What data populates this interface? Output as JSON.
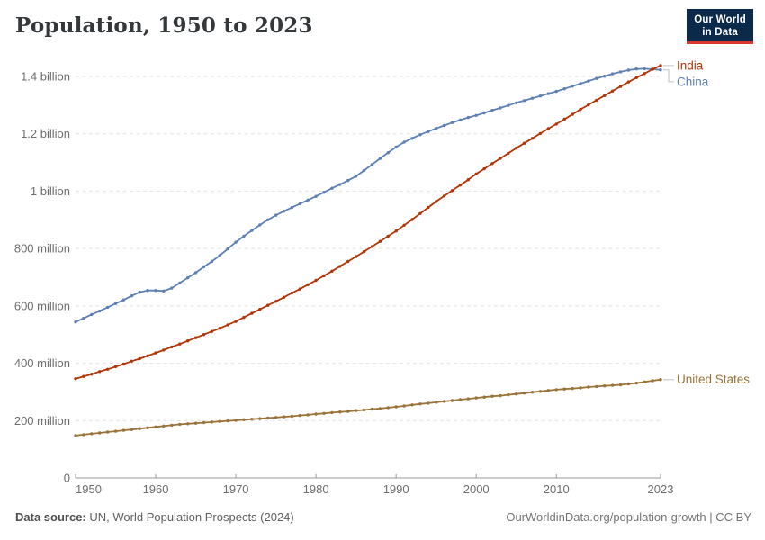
{
  "header": {
    "title": "Population, 1950 to 2023"
  },
  "logo": {
    "line1": "Our World",
    "line2": "in Data"
  },
  "footer": {
    "source_label": "Data source:",
    "source_text": "UN, World Population Prospects (2024)",
    "credit_text": "OurWorldinData.org/population-growth | CC BY"
  },
  "theme": {
    "background": "#ffffff",
    "title_color": "#34383b",
    "axis_text_color": "#6e6e6e",
    "gridline_color": "#e2e2e2",
    "axis_line_color": "#999999",
    "leader_line_color": "#cccccc",
    "logo_bg": "#0b2948",
    "logo_accent": "#d93831"
  },
  "chart_data": {
    "type": "line",
    "title": "Population, 1950 to 2023",
    "unit": "people (millions)",
    "grid": "dashed-horizontal",
    "markers": true,
    "legend_position": "right-end-labels",
    "ylim": [
      0,
      1400
    ],
    "xticks": [
      1950,
      1960,
      1970,
      1980,
      1990,
      2000,
      2010,
      2023
    ],
    "yticks": {
      "values": [
        0,
        200,
        400,
        600,
        800,
        1000,
        1200,
        1400
      ],
      "labels": [
        "0",
        "200 million",
        "400 million",
        "600 million",
        "800 million",
        "1 billion",
        "1.2 billion",
        "1.4 billion"
      ]
    },
    "x": [
      1950,
      1951,
      1952,
      1953,
      1954,
      1955,
      1956,
      1957,
      1958,
      1959,
      1960,
      1961,
      1962,
      1963,
      1964,
      1965,
      1966,
      1967,
      1968,
      1969,
      1970,
      1971,
      1972,
      1973,
      1974,
      1975,
      1976,
      1977,
      1978,
      1979,
      1980,
      1981,
      1982,
      1983,
      1984,
      1985,
      1986,
      1987,
      1988,
      1989,
      1990,
      1991,
      1992,
      1993,
      1994,
      1995,
      1996,
      1997,
      1998,
      1999,
      2000,
      2001,
      2002,
      2003,
      2004,
      2005,
      2006,
      2007,
      2008,
      2009,
      2010,
      2011,
      2012,
      2013,
      2014,
      2015,
      2016,
      2017,
      2018,
      2019,
      2020,
      2021,
      2022,
      2023
    ],
    "series": [
      {
        "name": "India",
        "color": "#b13507",
        "values": [
          346,
          354,
          362,
          371,
          379,
          388,
          397,
          407,
          416,
          426,
          436,
          446,
          457,
          467,
          478,
          489,
          500,
          511,
          522,
          534,
          546,
          560,
          574,
          588,
          602,
          616,
          630,
          645,
          659,
          674,
          689,
          705,
          721,
          738,
          755,
          772,
          789,
          807,
          825,
          843,
          861,
          881,
          901,
          922,
          943,
          964,
          983,
          1002,
          1021,
          1040,
          1060,
          1078,
          1096,
          1114,
          1132,
          1150,
          1167,
          1184,
          1201,
          1218,
          1234,
          1251,
          1268,
          1285,
          1301,
          1317,
          1333,
          1349,
          1365,
          1381,
          1396,
          1410,
          1425,
          1438
        ]
      },
      {
        "name": "China",
        "color": "#5e80b4",
        "values": [
          544,
          557,
          570,
          582,
          595,
          608,
          621,
          635,
          648,
          654,
          654,
          652,
          662,
          680,
          698,
          716,
          736,
          755,
          776,
          799,
          822,
          843,
          863,
          882,
          900,
          916,
          930,
          943,
          956,
          969,
          982,
          996,
          1010,
          1023,
          1037,
          1052,
          1072,
          1093,
          1114,
          1134,
          1154,
          1171,
          1184,
          1197,
          1208,
          1219,
          1229,
          1239,
          1248,
          1257,
          1264,
          1273,
          1282,
          1290,
          1299,
          1308,
          1316,
          1324,
          1332,
          1340,
          1348,
          1357,
          1366,
          1375,
          1384,
          1393,
          1401,
          1409,
          1416,
          1422,
          1426,
          1427,
          1425,
          1423
        ]
      },
      {
        "name": "United States",
        "color": "#997338",
        "values": [
          148,
          151,
          154,
          157,
          160,
          163,
          166,
          169,
          172,
          175,
          178,
          181,
          184,
          187,
          189,
          191,
          193,
          195,
          197,
          199,
          201,
          203,
          205,
          207,
          209,
          211,
          213,
          215,
          218,
          220,
          223,
          225,
          228,
          230,
          232,
          235,
          237,
          240,
          242,
          245,
          248,
          251,
          255,
          258,
          261,
          264,
          267,
          270,
          273,
          276,
          279,
          282,
          285,
          287,
          290,
          293,
          296,
          299,
          302,
          305,
          308,
          310,
          312,
          314,
          317,
          319,
          321,
          323,
          325,
          328,
          331,
          335,
          339,
          343
        ]
      }
    ]
  }
}
